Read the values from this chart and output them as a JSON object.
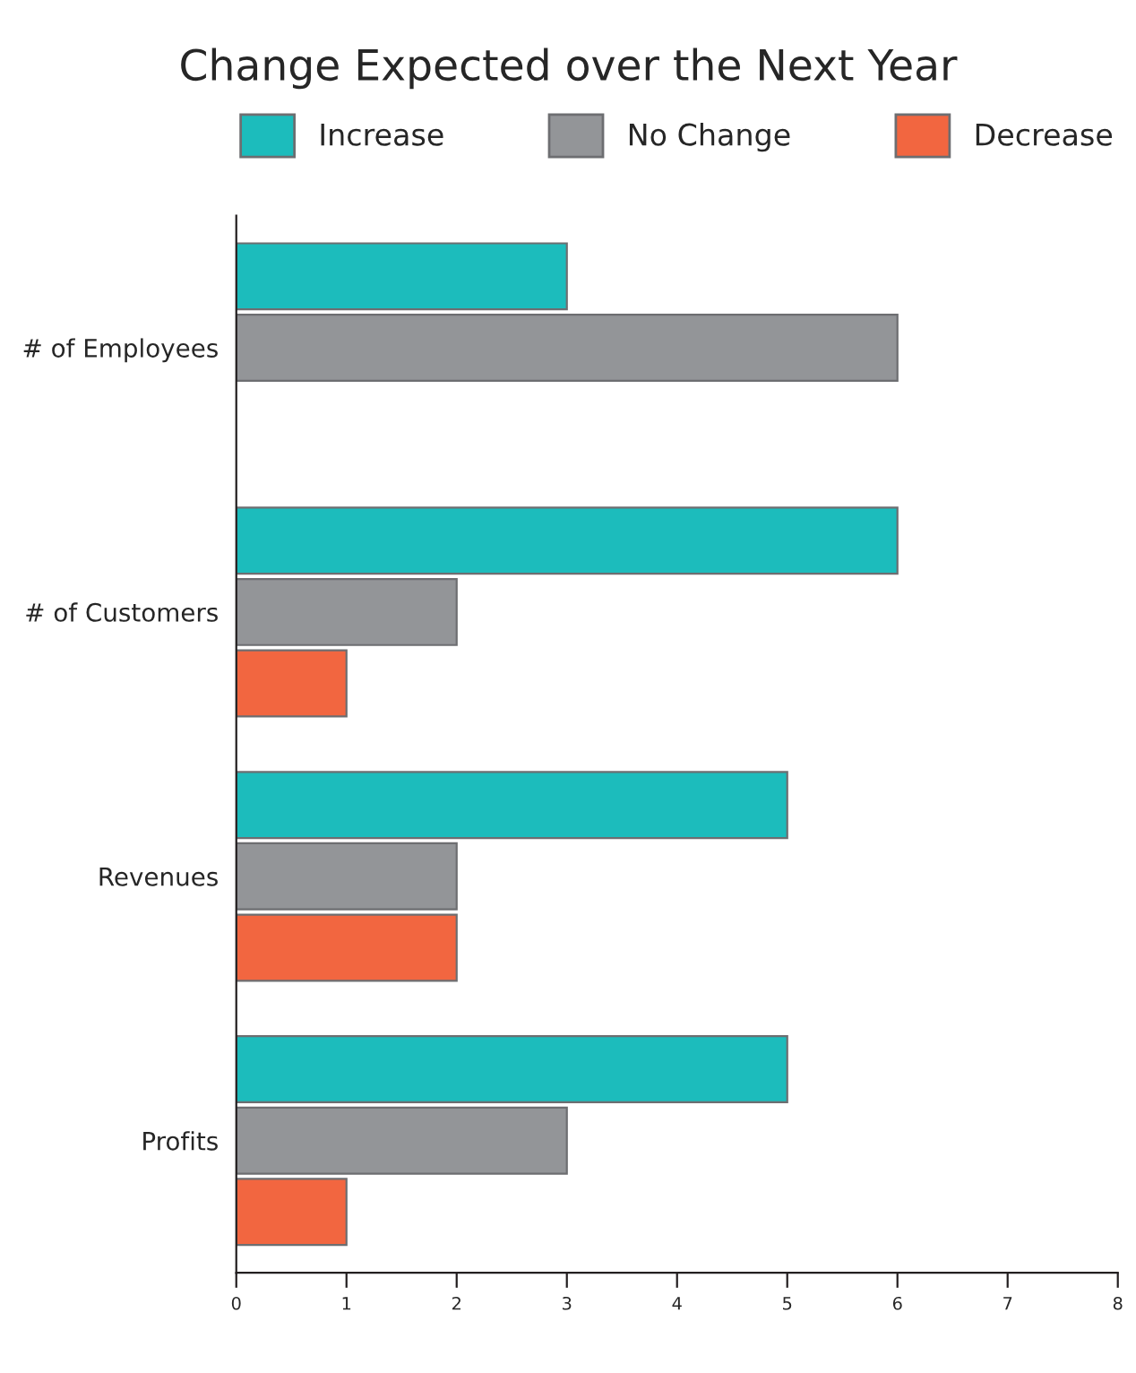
{
  "chart_data": {
    "type": "bar",
    "orientation": "horizontal",
    "title": "Change Expected over the Next Year",
    "categories": [
      "# of Employees",
      "# of Customers",
      "Revenues",
      "Profits"
    ],
    "series": [
      {
        "name": "Increase",
        "color": "#1cbcbc",
        "values": [
          3,
          6,
          5,
          5
        ]
      },
      {
        "name": "No Change",
        "color": "#939598",
        "values": [
          6,
          2,
          2,
          3
        ]
      },
      {
        "name": "Decrease",
        "color": "#f26640",
        "values": [
          null,
          1,
          2,
          1
        ]
      }
    ],
    "xlim": [
      0,
      8
    ],
    "xticks": [
      0,
      1,
      2,
      3,
      4,
      5,
      6,
      7,
      8
    ],
    "grid": false,
    "legend": "top"
  }
}
